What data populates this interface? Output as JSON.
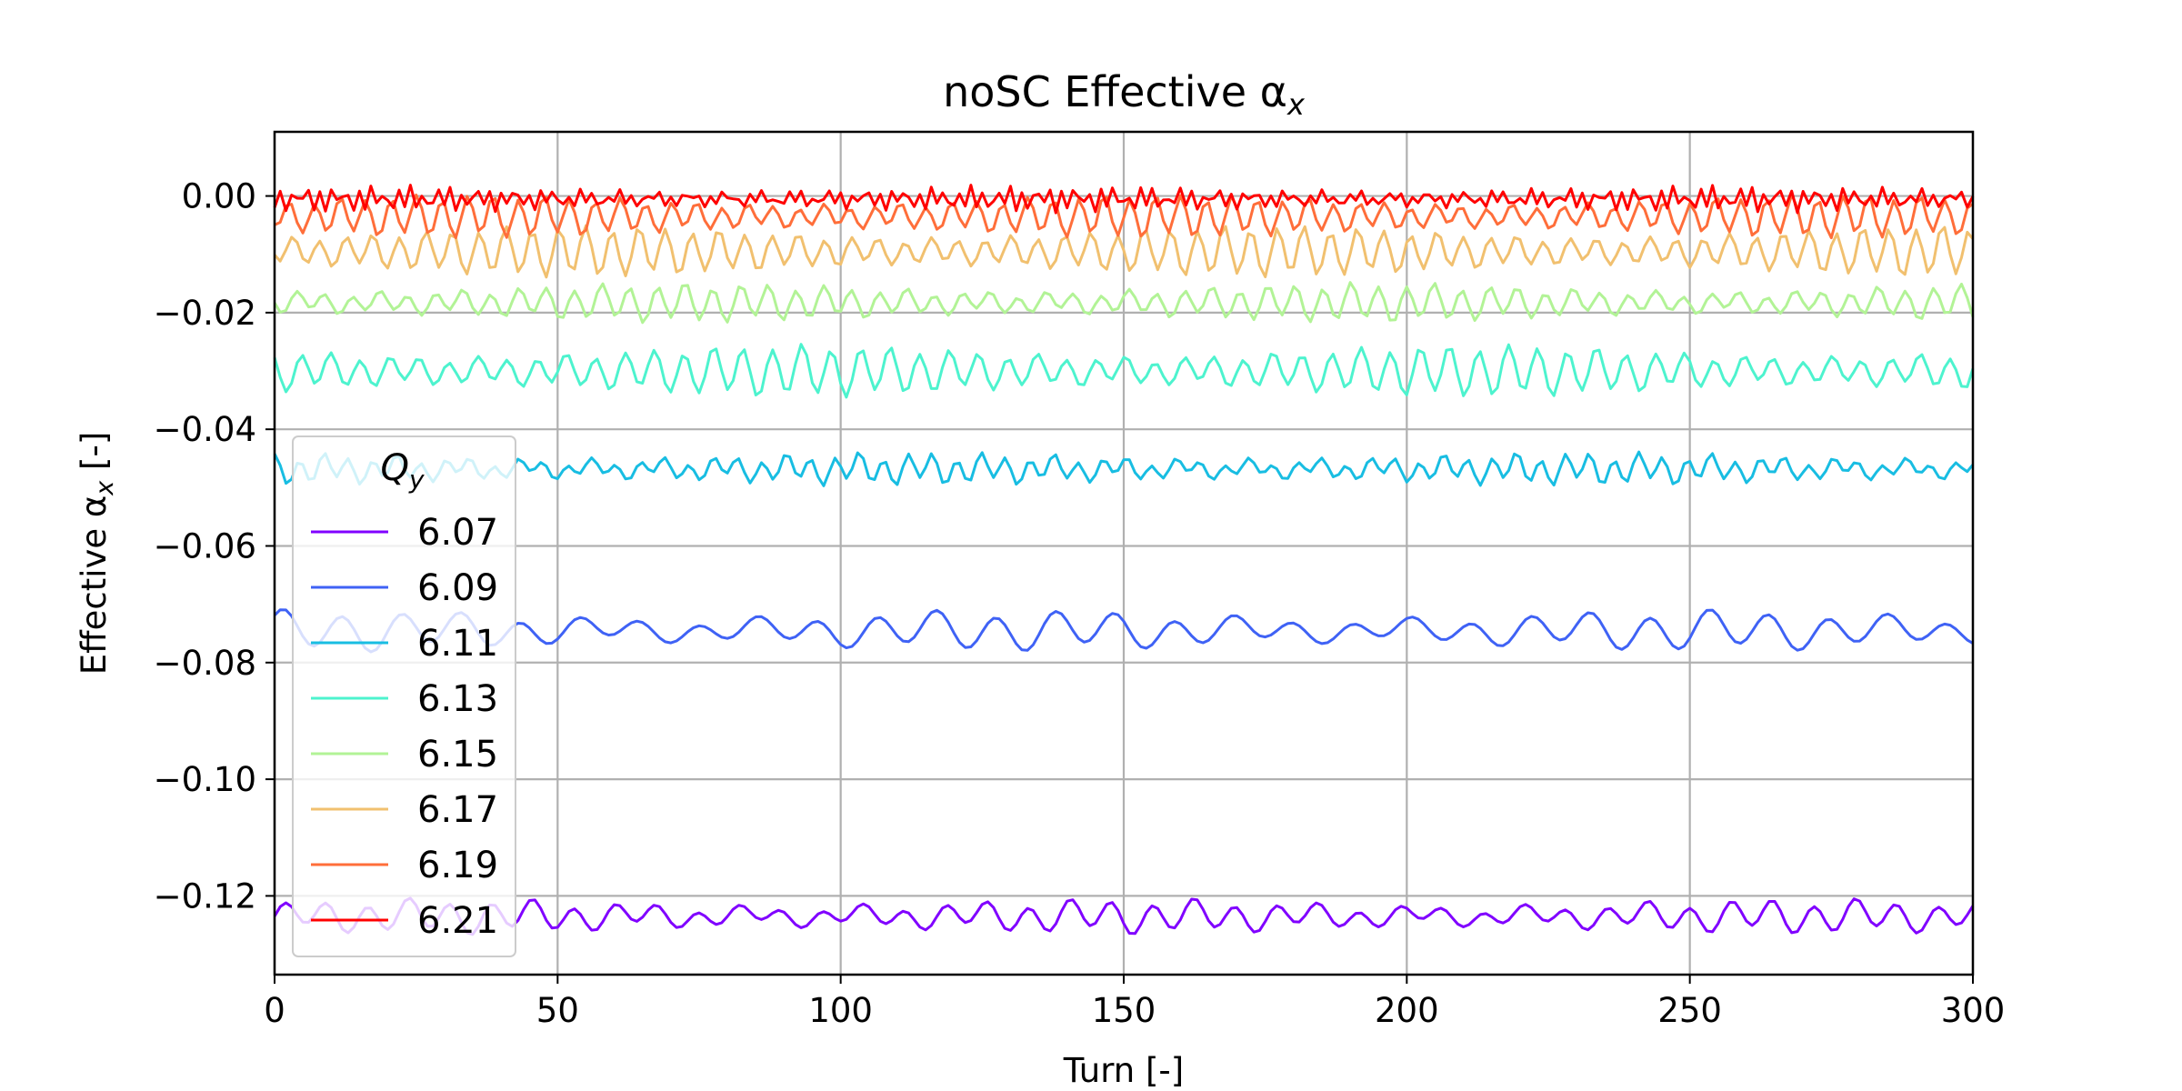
{
  "chart_data": {
    "type": "line",
    "title": "noSC Effective α",
    "title_subscript": "x",
    "xlabel": "Turn [-]",
    "ylabel": "Effective α",
    "ylabel_subscript": "x",
    "ylabel_suffix": " [-]",
    "xlim": [
      0,
      300
    ],
    "ylim": [
      -0.1335,
      0.011
    ],
    "xticks": [
      0,
      50,
      100,
      150,
      200,
      250,
      300
    ],
    "xtick_labels": [
      "0",
      "50",
      "100",
      "150",
      "200",
      "250",
      "300"
    ],
    "yticks": [
      0.0,
      -0.02,
      -0.04,
      -0.06,
      -0.08,
      -0.1,
      -0.12
    ],
    "ytick_labels": [
      "0.00",
      "−0.02",
      "−0.04",
      "−0.06",
      "−0.08",
      "−0.10",
      "−0.12"
    ],
    "grid": true,
    "legend": {
      "placement": "lower-left",
      "title": "Q",
      "title_subscript": "y"
    },
    "series": [
      {
        "name": "6.07",
        "color": "#8000ff",
        "center": -0.1235,
        "amp": 0.0018,
        "period": 7.3,
        "extra": 0.0008,
        "drift": 0.0
      },
      {
        "name": "6.09",
        "color": "#3f62f5",
        "center": -0.0745,
        "amp": 0.0022,
        "period": 10.5,
        "extra": 0.0008,
        "drift": 0.0
      },
      {
        "name": "6.11",
        "color": "#18bde2",
        "center": -0.0468,
        "amp": 0.0017,
        "period": 4.3,
        "extra": 0.0008,
        "drift": 0.0
      },
      {
        "name": "6.13",
        "color": "#4df3ce",
        "center": -0.03,
        "amp": 0.003,
        "period": 5.2,
        "extra": 0.0006,
        "drift": 0.0
      },
      {
        "name": "6.15",
        "color": "#b2f396",
        "center": -0.0183,
        "amp": 0.0022,
        "period": 4.9,
        "extra": 0.0006,
        "drift": 0.0
      },
      {
        "name": "6.17",
        "color": "#f1c06f",
        "center": -0.0095,
        "amp": 0.003,
        "period": 4.7,
        "extra": 0.0005,
        "drift": 0.0
      },
      {
        "name": "6.19",
        "color": "#ff6e3a",
        "center": -0.0035,
        "amp": 0.0025,
        "period": 4.5,
        "extra": 0.0005,
        "drift": 0.0
      },
      {
        "name": "6.21",
        "color": "#ff0000",
        "center": -0.0005,
        "amp": 0.0014,
        "period": 2.3,
        "extra": 0.0006,
        "drift": 0.0
      }
    ]
  }
}
